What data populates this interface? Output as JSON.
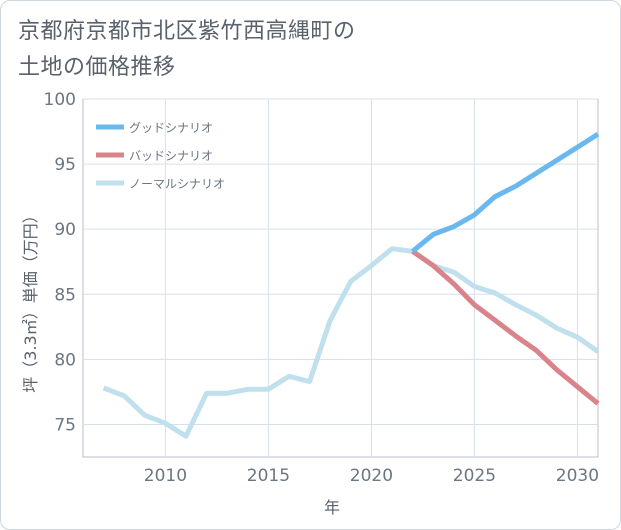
{
  "title_lines": [
    "京都府京都市北区紫竹西高縄町の",
    "土地の価格推移"
  ],
  "chart_data": {
    "type": "line",
    "title": "京都府京都市北区紫竹西高縄町の土地の価格推移",
    "xlabel": "年",
    "ylabel": "坪（3.3㎡）単価（万円）",
    "xlim": [
      2006,
      2031
    ],
    "ylim": [
      72.5,
      100
    ],
    "xticks": [
      2010,
      2015,
      2020,
      2025,
      2030
    ],
    "yticks": [
      75,
      80,
      85,
      90,
      95,
      100
    ],
    "grid": true,
    "legend_position": "top-left",
    "series": [
      {
        "name": "グッドシナリオ",
        "color": "#6bb8ef",
        "x": [
          2022,
          2023,
          2024,
          2025,
          2026,
          2027,
          2028,
          2029,
          2030,
          2031
        ],
        "y": [
          88.3,
          89.6,
          90.2,
          91.1,
          92.5,
          93.3,
          94.3,
          95.3,
          96.3,
          97.3
        ]
      },
      {
        "name": "バッドシナリオ",
        "color": "#d9838b",
        "x": [
          2022,
          2023,
          2024,
          2025,
          2026,
          2027,
          2028,
          2029,
          2030,
          2031
        ],
        "y": [
          88.3,
          87.2,
          85.8,
          84.2,
          83.0,
          81.8,
          80.7,
          79.2,
          77.9,
          76.6
        ]
      },
      {
        "name": "ノーマルシナリオ",
        "color": "#bfe0ec",
        "x": [
          2007,
          2008,
          2009,
          2010,
          2011,
          2012,
          2013,
          2014,
          2015,
          2016,
          2017,
          2018,
          2019,
          2020,
          2021,
          2022,
          2023,
          2024,
          2025,
          2026,
          2027,
          2028,
          2029,
          2030,
          2031
        ],
        "y": [
          77.8,
          77.2,
          75.7,
          75.1,
          74.1,
          77.4,
          77.4,
          77.7,
          77.7,
          78.7,
          78.3,
          83.0,
          86.0,
          87.2,
          88.5,
          88.3,
          87.2,
          86.7,
          85.6,
          85.1,
          84.2,
          83.4,
          82.4,
          81.7,
          80.6
        ]
      }
    ]
  }
}
